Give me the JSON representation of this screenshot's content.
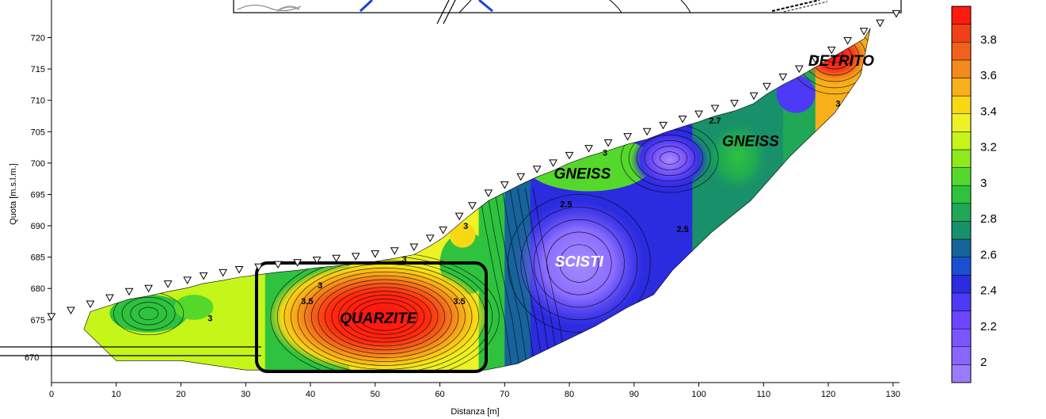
{
  "chart_data": {
    "type": "heatmap",
    "title": "",
    "xlabel": "Distanza [m]",
    "ylabel": "Quota [m.s.l.m.]",
    "xlim": [
      0,
      131
    ],
    "ylim": [
      665,
      726
    ],
    "x_ticks": [
      0,
      10,
      20,
      30,
      40,
      50,
      60,
      70,
      80,
      90,
      100,
      110,
      120,
      130
    ],
    "y_ticks": [
      675,
      680,
      685,
      690,
      695,
      700,
      705,
      710,
      715,
      720
    ],
    "partial_y_tick": "670",
    "grid": false,
    "colorbar": {
      "placement": "right",
      "levels": [
        2,
        2.1,
        2.2,
        2.3,
        2.4,
        2.5,
        2.6,
        2.7,
        2.8,
        2.9,
        3,
        3.1,
        3.2,
        3.3,
        3.4,
        3.5,
        3.6,
        3.7,
        3.8,
        3.9
      ],
      "colors": [
        "#9b7bff",
        "#8a66ff",
        "#7b56ff",
        "#6b46ff",
        "#4d3af6",
        "#2b2be0",
        "#1a4fcf",
        "#17639c",
        "#18906a",
        "#1fa855",
        "#2ec23f",
        "#55d82c",
        "#8cea1d",
        "#c6f51a",
        "#ecf224",
        "#f8d814",
        "#f7b01a",
        "#f38a1c",
        "#f0621c",
        "#ef4018",
        "#ff1a10"
      ],
      "tick_labels": [
        "2",
        "2.2",
        "2.4",
        "2.6",
        "2.8",
        "3",
        "3.2",
        "3.4",
        "3.6",
        "3.8"
      ]
    },
    "surface_points": [
      {
        "x": 0,
        "y": 675.5
      },
      {
        "x": 3,
        "y": 676.5
      },
      {
        "x": 6,
        "y": 677.5
      },
      {
        "x": 9,
        "y": 678.5
      },
      {
        "x": 12,
        "y": 679.5
      },
      {
        "x": 15,
        "y": 680.0
      },
      {
        "x": 18,
        "y": 680.7
      },
      {
        "x": 21,
        "y": 681.3
      },
      {
        "x": 23.5,
        "y": 682.0
      },
      {
        "x": 26.5,
        "y": 682.5
      },
      {
        "x": 29,
        "y": 683.0
      },
      {
        "x": 32,
        "y": 683.4
      },
      {
        "x": 35,
        "y": 683.8
      },
      {
        "x": 38,
        "y": 684.1
      },
      {
        "x": 41,
        "y": 684.5
      },
      {
        "x": 44,
        "y": 684.8
      },
      {
        "x": 47,
        "y": 685.1
      },
      {
        "x": 50,
        "y": 685.5
      },
      {
        "x": 53,
        "y": 686.0
      },
      {
        "x": 56,
        "y": 686.6
      },
      {
        "x": 58.5,
        "y": 688.0
      },
      {
        "x": 60.5,
        "y": 689.3
      },
      {
        "x": 63,
        "y": 691.5
      },
      {
        "x": 65,
        "y": 693.2
      },
      {
        "x": 67.5,
        "y": 695.2
      },
      {
        "x": 70,
        "y": 696.5
      },
      {
        "x": 72.5,
        "y": 697.8
      },
      {
        "x": 75,
        "y": 699.0
      },
      {
        "x": 77.5,
        "y": 700.0
      },
      {
        "x": 80,
        "y": 701.2
      },
      {
        "x": 83,
        "y": 702.3
      },
      {
        "x": 86,
        "y": 703.2
      },
      {
        "x": 89,
        "y": 704.2
      },
      {
        "x": 92,
        "y": 705.0
      },
      {
        "x": 94.5,
        "y": 706.0
      },
      {
        "x": 97.5,
        "y": 707.0
      },
      {
        "x": 100,
        "y": 707.8
      },
      {
        "x": 102.5,
        "y": 708.7
      },
      {
        "x": 105.5,
        "y": 709.5
      },
      {
        "x": 108.5,
        "y": 710.7
      },
      {
        "x": 110.5,
        "y": 712.2
      },
      {
        "x": 113,
        "y": 713.7
      },
      {
        "x": 115.5,
        "y": 715.0
      },
      {
        "x": 118,
        "y": 716.5
      },
      {
        "x": 120.5,
        "y": 718.0
      },
      {
        "x": 123,
        "y": 719.5
      },
      {
        "x": 125.5,
        "y": 721.0
      },
      {
        "x": 128,
        "y": 722.3
      },
      {
        "x": 130.5,
        "y": 723.8
      }
    ],
    "annotations": [
      {
        "text": "DETRITO",
        "x": 122,
        "y": 715.5,
        "color": "#000000"
      },
      {
        "text": "GNEISS",
        "x": 108,
        "y": 702.7,
        "color": "#000000"
      },
      {
        "text": "GNEISS",
        "x": 82,
        "y": 697.5,
        "color": "#000000"
      },
      {
        "text": "SCISTI",
        "x": 81.5,
        "y": 683.5,
        "color": "#ffffff"
      },
      {
        "text": "QUARZITE",
        "x": 50.5,
        "y": 674.5,
        "color": "#000000"
      }
    ],
    "contour_labels": [
      {
        "text": "2.5",
        "x": 79.5,
        "y": 693.0
      },
      {
        "text": "2.5",
        "x": 97.5,
        "y": 689.0
      },
      {
        "text": "2.7",
        "x": 102.5,
        "y": 706.3
      },
      {
        "text": "3",
        "x": 24.5,
        "y": 674.8
      },
      {
        "text": "3",
        "x": 41.5,
        "y": 680.0
      },
      {
        "text": "3",
        "x": 54.5,
        "y": 684.2
      },
      {
        "text": "3",
        "x": 64,
        "y": 689.5
      },
      {
        "text": "3",
        "x": 85.5,
        "y": 701.2
      },
      {
        "text": "3",
        "x": 121.5,
        "y": 709.0
      },
      {
        "text": "3.5",
        "x": 39.5,
        "y": 677.5
      },
      {
        "text": "3.5",
        "x": 63,
        "y": 677.5
      }
    ]
  }
}
